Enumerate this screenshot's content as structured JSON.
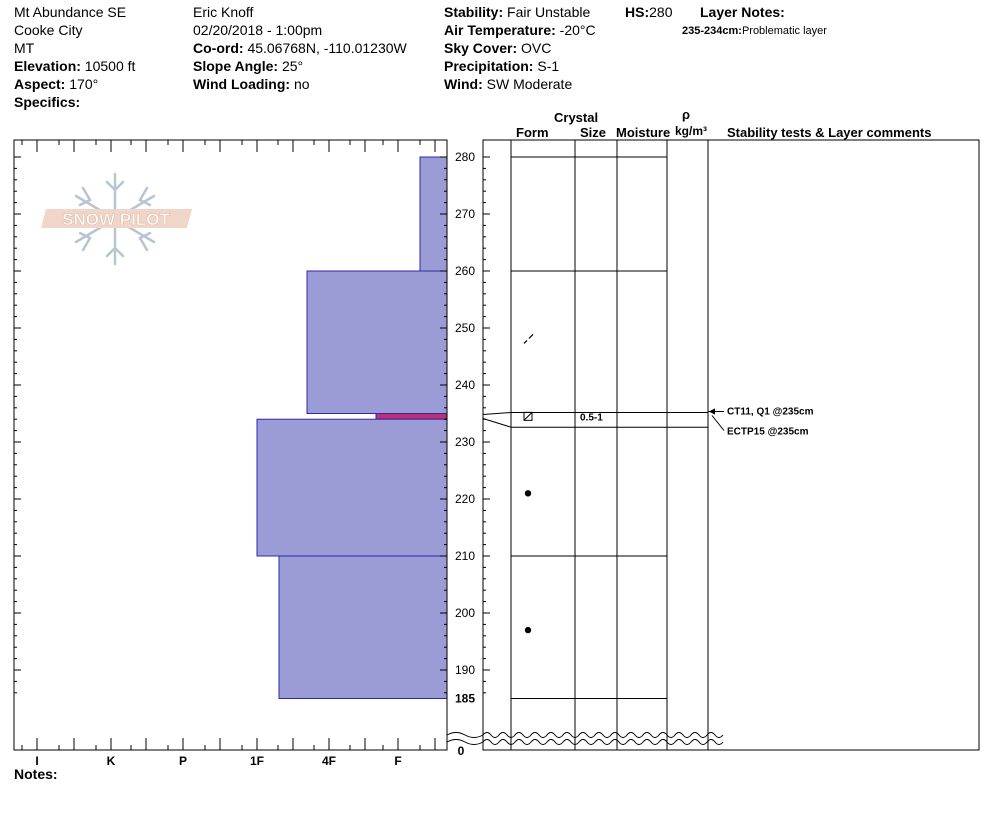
{
  "header": {
    "site": "Mt Abundance SE",
    "region": "Cooke City",
    "state": "MT",
    "elevation_label": "Elevation:",
    "elevation_value": "10500 ft",
    "aspect_label": "Aspect:",
    "aspect_value": "170°",
    "specifics_label": "Specifics:",
    "observer": "Eric Knoff",
    "datetime": "02/20/2018 - 1:00pm",
    "coord_label": "Co-ord:",
    "coord_value": "45.06768N, -110.01230W",
    "slope_label": "Slope Angle:",
    "slope_value": "25°",
    "wind_loading_label": "Wind Loading:",
    "wind_loading_value": "no",
    "stability_label": "Stability:",
    "stability_value": "Fair Unstable",
    "air_temp_label": "Air Temperature:",
    "air_temp_value": "-20°C",
    "sky_label": "Sky Cover:",
    "sky_value": "OVC",
    "precip_label": "Precipitation:",
    "precip_value": "S-1",
    "wind_label": "Wind:",
    "wind_value": "SW Moderate",
    "hs_label": "HS:",
    "hs_value": "280",
    "layer_notes_label": "Layer Notes:",
    "layer_note_range": "235-234cm:",
    "layer_note_text": "Problematic layer"
  },
  "columns": {
    "crystal": "Crystal",
    "form": "Form",
    "size": "Size",
    "moisture": "Moisture",
    "rho": "ρ",
    "density_unit": "kg/m³",
    "stability_comments": "Stability tests & Layer comments"
  },
  "logo_text": "SNOW PILOT",
  "notes_label": "Notes:",
  "colors": {
    "hardness_fill": "#9b9bd6",
    "hardness_stroke": "#2a2ab0",
    "weak_layer": "#c03070"
  },
  "chart_data": {
    "type": "bar",
    "orientation": "horizontal",
    "description": "Snow pit hand hardness profile",
    "hardness_scale": [
      "I",
      "K",
      "P",
      "1F",
      "4F",
      "F"
    ],
    "y_ticks": [
      190,
      200,
      210,
      220,
      230,
      240,
      250,
      260,
      270,
      280
    ],
    "y_extra_ticks": [
      "185",
      "0"
    ],
    "y_range_cm": [
      185,
      280
    ],
    "layers": [
      {
        "top": 280,
        "bottom": 260,
        "hardness": "F+"
      },
      {
        "top": 260,
        "bottom": 235,
        "hardness": "4F-"
      },
      {
        "top": 235,
        "bottom": 234,
        "hardness": "F-",
        "weak": true
      },
      {
        "top": 234,
        "bottom": 210,
        "hardness": "1F"
      },
      {
        "top": 210,
        "bottom": 185,
        "hardness": "1F+"
      }
    ],
    "layer_boundaries_cm": [
      280,
      260,
      210,
      185
    ],
    "crystals": [
      {
        "height": 248,
        "symbol": "decomposing-fragments"
      },
      {
        "height": 234.5,
        "symbol": "faceted",
        "size": "0.5-1"
      },
      {
        "height": 221,
        "symbol": "rounded"
      },
      {
        "height": 197,
        "symbol": "rounded"
      }
    ],
    "tests": [
      {
        "text": "CT11, Q1 @235cm",
        "height": 235
      },
      {
        "text": "ECTP15 @235cm",
        "height": 235
      }
    ]
  }
}
